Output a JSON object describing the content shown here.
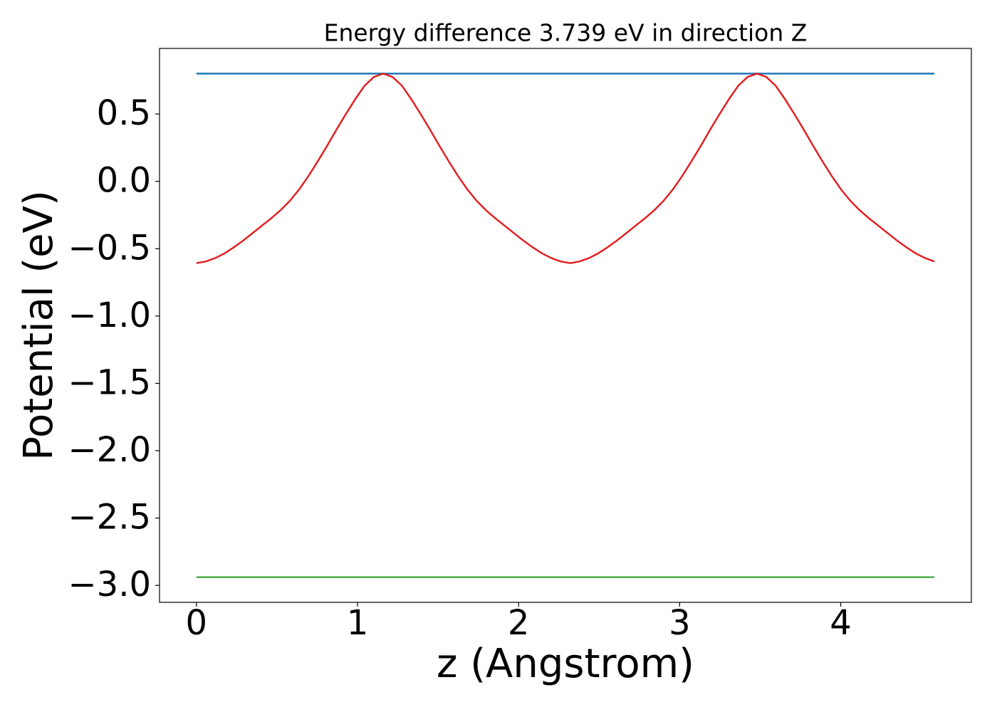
{
  "chart_data": {
    "type": "line",
    "title": "Energy difference 3.739 eV in direction Z",
    "xlabel": "z (Angstrom)",
    "ylabel": "Potential (eV)",
    "xlim": [
      -0.229,
      4.811
    ],
    "ylim": [
      -3.126,
      0.987
    ],
    "xticks": [
      0,
      1,
      2,
      3,
      4
    ],
    "yticks": [
      0.5,
      {
        "value": 0,
        "label": "0.0"
      },
      {
        "value": -0.5,
        "label": "−0.5"
      },
      {
        "value": -1,
        "label": "−1.0"
      },
      {
        "value": -1.5,
        "label": "−1.5"
      },
      {
        "value": -2,
        "label": "−2.0"
      },
      {
        "value": -2.5,
        "label": "−2.5"
      },
      {
        "value": -3,
        "label": "−3.0"
      }
    ],
    "grid": false,
    "series": [
      {
        "color": "#1f77b4",
        "x": [
          0,
          4.582
        ],
        "values": [
          0.8,
          0.8
        ]
      },
      {
        "color": "#4daf4a",
        "x": [
          0,
          4.582
        ],
        "values": [
          -2.939,
          -2.939
        ]
      },
      {
        "color": "#e41a1c",
        "x": [
          0,
          0.058,
          0.116,
          0.174,
          0.232,
          0.29,
          0.348,
          0.406,
          0.464,
          0.522,
          0.58,
          0.638,
          0.696,
          0.754,
          0.812,
          0.87,
          0.928,
          0.986,
          1.044,
          1.102,
          1.16,
          1.218,
          1.276,
          1.334,
          1.392,
          1.45,
          1.508,
          1.566,
          1.624,
          1.682,
          1.74,
          1.798,
          1.856,
          1.914,
          1.972,
          2.03,
          2.088,
          2.146,
          2.204,
          2.262,
          2.32,
          2.378,
          2.436,
          2.494,
          2.552,
          2.61,
          2.668,
          2.726,
          2.784,
          2.842,
          2.9,
          2.958,
          3.016,
          3.074,
          3.132,
          3.19,
          3.248,
          3.306,
          3.364,
          3.422,
          3.48,
          3.538,
          3.596,
          3.654,
          3.712,
          3.77,
          3.828,
          3.886,
          3.944,
          4.002,
          4.06,
          4.118,
          4.176,
          4.234,
          4.292,
          4.35,
          4.408,
          4.466,
          4.524,
          4.582
        ],
        "values": [
          -0.607,
          -0.595,
          -0.57,
          -0.535,
          -0.49,
          -0.44,
          -0.385,
          -0.33,
          -0.275,
          -0.215,
          -0.145,
          -0.06,
          0.04,
          0.15,
          0.265,
          0.385,
          0.5,
          0.61,
          0.71,
          0.775,
          0.8,
          0.775,
          0.71,
          0.61,
          0.5,
          0.385,
          0.265,
          0.15,
          0.04,
          -0.06,
          -0.145,
          -0.215,
          -0.275,
          -0.33,
          -0.385,
          -0.44,
          -0.49,
          -0.535,
          -0.57,
          -0.595,
          -0.607,
          -0.595,
          -0.57,
          -0.535,
          -0.49,
          -0.44,
          -0.385,
          -0.33,
          -0.275,
          -0.215,
          -0.145,
          -0.06,
          0.04,
          0.15,
          0.265,
          0.385,
          0.5,
          0.61,
          0.71,
          0.775,
          0.8,
          0.775,
          0.71,
          0.61,
          0.5,
          0.385,
          0.265,
          0.15,
          0.04,
          -0.06,
          -0.145,
          -0.215,
          -0.275,
          -0.33,
          -0.385,
          -0.44,
          -0.49,
          -0.535,
          -0.57,
          -0.595
        ]
      }
    ]
  }
}
